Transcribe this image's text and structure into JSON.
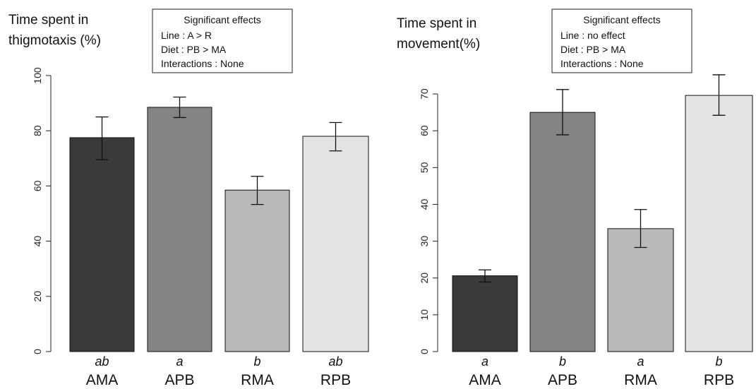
{
  "chart_data": [
    {
      "type": "bar",
      "title": "",
      "ylabel_lines": [
        "Time spent in",
        "thigmotaxis (%)"
      ],
      "xlabel": "",
      "categories": [
        "AMA",
        "APB",
        "RMA",
        "RPB"
      ],
      "values": [
        77.5,
        88.5,
        58.5,
        78
      ],
      "error_low": [
        69.5,
        84.8,
        53.3,
        72.7
      ],
      "error_high": [
        85,
        92.2,
        63.5,
        83
      ],
      "significance": [
        "ab",
        "a",
        "b",
        "ab"
      ],
      "bar_colors": [
        "#3a3a3a",
        "#848484",
        "#b9b9b9",
        "#e4e4e4"
      ],
      "ylim": [
        0,
        100
      ],
      "yticks": [
        "0",
        "20",
        "40",
        "60",
        "80",
        "100"
      ],
      "ytick_values": [
        0,
        20,
        40,
        60,
        80,
        100
      ],
      "grid": false,
      "legend_box": {
        "title": "Significant effects",
        "lines": [
          "Line : A > R",
          "Diet : PB > MA",
          "Interactions : None"
        ]
      }
    },
    {
      "type": "bar",
      "title": "",
      "ylabel_lines": [
        "Time spent in",
        "movement(%)"
      ],
      "xlabel": "",
      "categories": [
        "AMA",
        "APB",
        "RMA",
        "RPB"
      ],
      "values": [
        20.6,
        65,
        33.4,
        69.6
      ],
      "error_low": [
        18.9,
        58.9,
        28.3,
        64.2
      ],
      "error_high": [
        22.2,
        71.2,
        38.6,
        75.2
      ],
      "significance": [
        "a",
        "b",
        "a",
        "b"
      ],
      "bar_colors": [
        "#3a3a3a",
        "#848484",
        "#b9b9b9",
        "#e4e4e4"
      ],
      "ylim": [
        0,
        75
      ],
      "yticks": [
        "0",
        "10",
        "20",
        "30",
        "40",
        "50",
        "60",
        "70"
      ],
      "ytick_values": [
        0,
        10,
        20,
        30,
        40,
        50,
        60,
        70
      ],
      "grid": false,
      "legend_box": {
        "title": "Significant effects",
        "lines": [
          "Line : no effect",
          "Diet : PB > MA",
          "Interactions : None"
        ]
      }
    }
  ]
}
